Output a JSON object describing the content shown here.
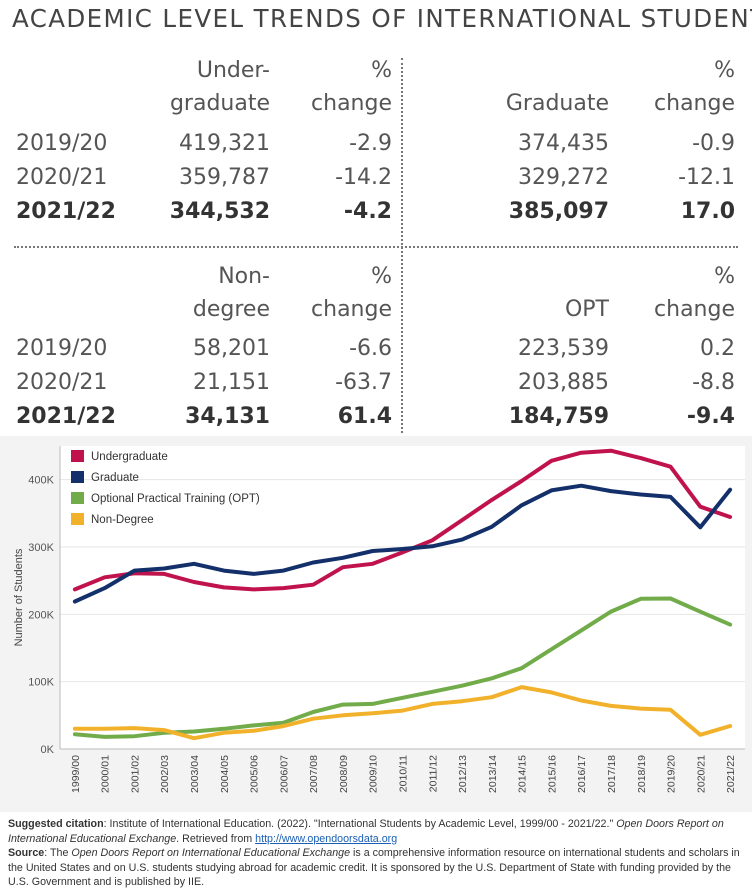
{
  "title": "ACADEMIC LEVEL TRENDS OF INTERNATIONAL STUDENTS",
  "tables": {
    "undergraduate": {
      "header1": "Under-",
      "header2": "graduate",
      "pct1": "%",
      "pct2": "change",
      "rows": [
        {
          "year": "2019/20",
          "value": "419,321",
          "change": "-2.9"
        },
        {
          "year": "2020/21",
          "value": "359,787",
          "change": "-14.2"
        },
        {
          "year": "2021/22",
          "value": "344,532",
          "change": "-4.2"
        }
      ]
    },
    "graduate": {
      "header2": "Graduate",
      "pct1": "%",
      "pct2": "change",
      "rows": [
        {
          "value": "374,435",
          "change": "-0.9"
        },
        {
          "value": "329,272",
          "change": "-12.1"
        },
        {
          "value": "385,097",
          "change": "17.0"
        }
      ]
    },
    "nondegree": {
      "header1": "Non-",
      "header2": "degree",
      "pct1": "%",
      "pct2": "change",
      "rows": [
        {
          "year": "2019/20",
          "value": "58,201",
          "change": "-6.6"
        },
        {
          "year": "2020/21",
          "value": "21,151",
          "change": "-63.7"
        },
        {
          "year": "2021/22",
          "value": "34,131",
          "change": "61.4"
        }
      ]
    },
    "opt": {
      "header2": "OPT",
      "pct1": "%",
      "pct2": "change",
      "rows": [
        {
          "value": "223,539",
          "change": "0.2"
        },
        {
          "value": "203,885",
          "change": "-8.8"
        },
        {
          "value": "184,759",
          "change": "-9.4"
        }
      ]
    }
  },
  "chart_data": {
    "type": "line",
    "ylabel": "Number of Students",
    "xlabel": "",
    "ylim": [
      0,
      450000
    ],
    "yticks": [
      0,
      100000,
      200000,
      300000,
      400000
    ],
    "ytick_labels": [
      "0K",
      "100K",
      "200K",
      "300K",
      "400K"
    ],
    "grid": true,
    "legend": "top-left",
    "x": [
      "1999/00",
      "2000/01",
      "2001/02",
      "2002/03",
      "2003/04",
      "2004/05",
      "2005/06",
      "2006/07",
      "2007/08",
      "2008/09",
      "2009/10",
      "2010/11",
      "2011/12",
      "2012/13",
      "2013/14",
      "2014/15",
      "2015/16",
      "2016/17",
      "2017/18",
      "2018/19",
      "2019/20",
      "2020/21",
      "2021/22"
    ],
    "series": [
      {
        "name": "Undergraduate",
        "color": "#c0134d",
        "values": [
          237000,
          255000,
          261000,
          260000,
          248000,
          240000,
          237000,
          239000,
          244000,
          270000,
          275000,
          292000,
          310000,
          340000,
          370000,
          398000,
          428000,
          440000,
          443000,
          432000,
          419321,
          359787,
          344532
        ]
      },
      {
        "name": "Graduate",
        "color": "#13306a",
        "values": [
          219000,
          239000,
          265000,
          268000,
          275000,
          265000,
          260000,
          265000,
          277000,
          284000,
          294000,
          297000,
          301000,
          311000,
          330000,
          362000,
          384000,
          391000,
          383000,
          378000,
          374435,
          329272,
          385097
        ]
      },
      {
        "name": "Optional Practical Training (OPT)",
        "color": "#72ac4a",
        "values": [
          22000,
          18000,
          19000,
          24000,
          26000,
          30000,
          35000,
          39000,
          55000,
          66000,
          67000,
          76000,
          85000,
          94000,
          105000,
          120000,
          148000,
          176000,
          204000,
          223000,
          223539,
          203885,
          184759
        ]
      },
      {
        "name": "Non-Degree",
        "color": "#f2b12b",
        "values": [
          30000,
          30000,
          31000,
          28000,
          16000,
          24000,
          27000,
          34000,
          45000,
          50000,
          53000,
          57000,
          67000,
          71000,
          77000,
          92000,
          84000,
          72000,
          64000,
          60000,
          58201,
          21151,
          34131
        ]
      }
    ]
  },
  "footer": {
    "citation_label": "Suggested citation",
    "citation_text": ": Institute of International Education. (2022). \"International Students by Academic Level, 1999/00 - 2021/22.\"",
    "report_title": "Open Doors Report on International Educational Exchange",
    "retrieved": ". Retrieved from ",
    "link": "http://www.opendoorsdata.org",
    "source_label": "Source",
    "source_pre": ": The ",
    "source_post": " is a comprehensive information resource on international students and scholars in the United States and on U.S. students studying abroad for academic credit. It is sponsored by the U.S. Department of State with funding provided by the U.S. Government and is published by IIE."
  }
}
